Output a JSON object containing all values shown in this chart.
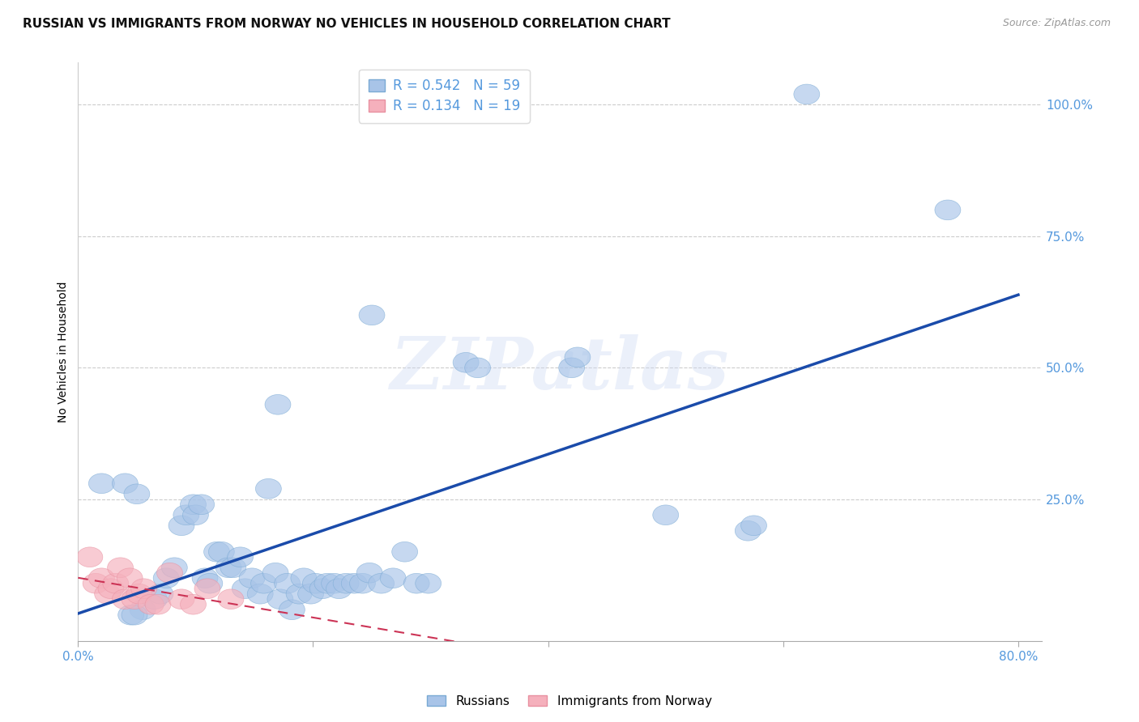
{
  "title": "RUSSIAN VS IMMIGRANTS FROM NORWAY NO VEHICLES IN HOUSEHOLD CORRELATION CHART",
  "source": "Source: ZipAtlas.com",
  "ylabel": "No Vehicles in Household",
  "xlim": [
    0.0,
    0.82
  ],
  "ylim": [
    -0.02,
    1.08
  ],
  "x_ticks": [
    0.0,
    0.2,
    0.4,
    0.6,
    0.8
  ],
  "x_tick_labels": [
    "0.0%",
    "",
    "",
    "",
    "80.0%"
  ],
  "y_ticks": [
    0.0,
    0.25,
    0.5,
    0.75,
    1.0
  ],
  "y_tick_labels": [
    "",
    "25.0%",
    "50.0%",
    "75.0%",
    "100.0%"
  ],
  "russians_x": [
    0.62,
    0.74,
    0.25,
    0.33,
    0.17,
    0.34,
    0.42,
    0.425,
    0.5,
    0.57,
    0.575,
    0.02,
    0.04,
    0.05,
    0.055,
    0.065,
    0.07,
    0.075,
    0.082,
    0.088,
    0.092,
    0.098,
    0.1,
    0.105,
    0.108,
    0.112,
    0.118,
    0.122,
    0.128,
    0.132,
    0.138,
    0.142,
    0.148,
    0.155,
    0.158,
    0.162,
    0.168,
    0.172,
    0.178,
    0.182,
    0.188,
    0.192,
    0.198,
    0.202,
    0.208,
    0.212,
    0.218,
    0.222,
    0.228,
    0.235,
    0.242,
    0.248,
    0.258,
    0.268,
    0.278,
    0.288,
    0.298,
    0.045,
    0.048
  ],
  "russians_y": [
    1.02,
    0.8,
    0.6,
    0.51,
    0.43,
    0.5,
    0.5,
    0.52,
    0.22,
    0.19,
    0.2,
    0.28,
    0.28,
    0.26,
    0.04,
    0.06,
    0.07,
    0.1,
    0.12,
    0.2,
    0.22,
    0.24,
    0.22,
    0.24,
    0.1,
    0.09,
    0.15,
    0.15,
    0.12,
    0.12,
    0.14,
    0.08,
    0.1,
    0.07,
    0.09,
    0.27,
    0.11,
    0.06,
    0.09,
    0.04,
    0.07,
    0.1,
    0.07,
    0.09,
    0.08,
    0.09,
    0.09,
    0.08,
    0.09,
    0.09,
    0.09,
    0.11,
    0.09,
    0.1,
    0.15,
    0.09,
    0.09,
    0.03,
    0.03
  ],
  "norway_x": [
    0.01,
    0.015,
    0.02,
    0.025,
    0.028,
    0.032,
    0.036,
    0.04,
    0.044,
    0.048,
    0.052,
    0.056,
    0.062,
    0.068,
    0.078,
    0.088,
    0.098,
    0.11,
    0.13
  ],
  "norway_y": [
    0.14,
    0.09,
    0.1,
    0.07,
    0.08,
    0.09,
    0.12,
    0.06,
    0.1,
    0.06,
    0.07,
    0.08,
    0.05,
    0.05,
    0.11,
    0.06,
    0.05,
    0.08,
    0.06
  ],
  "russian_R": 0.542,
  "russian_N": 59,
  "norway_R": 0.134,
  "norway_N": 19,
  "blue_color": "#a8c4e8",
  "blue_edge_color": "#7aaad4",
  "pink_color": "#f5b0bc",
  "pink_edge_color": "#e890a0",
  "blue_line_color": "#1a4baa",
  "pink_line_color": "#cc3355",
  "tick_color": "#5599dd",
  "grid_color": "#cccccc",
  "watermark": "ZIPatlas"
}
